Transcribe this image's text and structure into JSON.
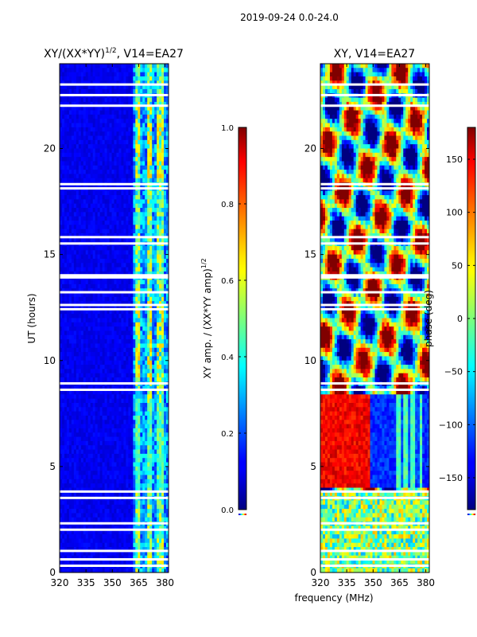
{
  "figure_title": "2019-09-24 0.0-24.0",
  "xlabel_shared": "frequency (MHz)",
  "chart_data": [
    {
      "type": "heatmap",
      "title": "XY/(XX*YY)^1/2, V14=EA27",
      "title_main": "XY/(XX*YY)",
      "title_exp": "1/2",
      "title_tail": ", V14=EA27",
      "xlabel": "frequency (MHz)",
      "ylabel": "UT (hours)",
      "xlim": [
        320,
        382
      ],
      "ylim": [
        0,
        24
      ],
      "xticks": [
        320,
        335,
        350,
        365,
        380
      ],
      "yticks": [
        0,
        5,
        10,
        15,
        20
      ],
      "colorbar": {
        "label": "XY amp. / (XX*YY amp)^1/2",
        "label_main": "XY amp. / (XX*YY amp)",
        "label_exp": "1/2",
        "range": [
          0.0,
          1.0
        ],
        "ticks": [
          "0.0",
          "0.2",
          "0.4",
          "0.6",
          "0.8",
          "1.0"
        ],
        "colormap": "jet"
      },
      "masked_rows_ut": [
        0.3,
        0.6,
        1.0,
        2.0,
        2.3,
        3.5,
        3.8,
        8.6,
        8.9,
        12.4,
        12.6,
        13.2,
        13.9,
        14.0,
        15.5,
        15.8,
        18.1,
        18.3,
        22.0,
        22.5,
        23.0
      ]
    },
    {
      "type": "heatmap",
      "title": "XY, V14=EA27",
      "xlabel": "frequency (MHz)",
      "ylabel": "",
      "xlim": [
        320,
        382
      ],
      "ylim": [
        0,
        24
      ],
      "xticks": [
        320,
        335,
        350,
        365,
        380
      ],
      "yticks": [
        0,
        5,
        10,
        15,
        20
      ],
      "colorbar": {
        "label": "phase (deg)",
        "range": [
          -180,
          180
        ],
        "ticks": [
          "150",
          "100",
          "50",
          "0",
          "−50",
          "−100",
          "−150"
        ],
        "colormap": "jet"
      },
      "masked_rows_ut": [
        0.3,
        0.6,
        1.0,
        2.0,
        2.3,
        3.5,
        3.8,
        8.6,
        8.9,
        12.4,
        12.6,
        13.2,
        13.9,
        14.0,
        15.5,
        15.8,
        18.1,
        18.3,
        22.0,
        22.5,
        23.0
      ]
    }
  ]
}
